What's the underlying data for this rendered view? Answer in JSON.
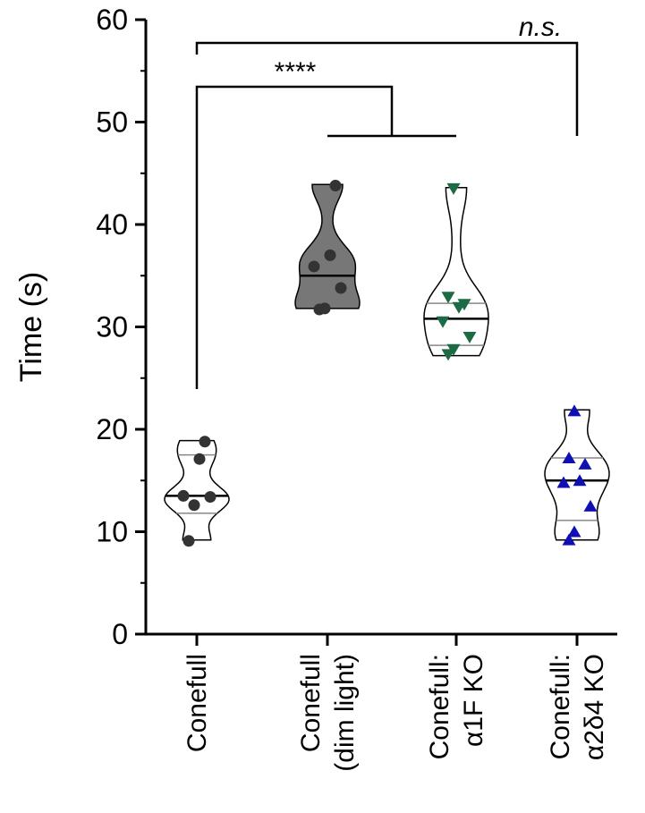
{
  "chart_data": {
    "type": "violin",
    "ylabel": "Time (s)",
    "ylim": [
      0,
      60
    ],
    "yticks": [
      "0",
      "10",
      "20",
      "30",
      "40",
      "50",
      "60"
    ],
    "ytick_values": [
      0,
      10,
      20,
      30,
      40,
      50,
      60
    ],
    "categories": [
      {
        "lines": [
          "Conefull"
        ]
      },
      {
        "lines": [
          "Conefull",
          "(dim light)"
        ]
      },
      {
        "lines": [
          "Conefull:",
          "α1F KO"
        ]
      },
      {
        "lines": [
          "Conefull:",
          "α2δ4 KO"
        ]
      }
    ],
    "series": [
      {
        "fill": "#ffffff",
        "marker": "circle",
        "marker_color": "#333333",
        "median": 13.5,
        "quartiles": [
          11.8,
          17.5
        ],
        "range": [
          9.2,
          18.9
        ],
        "values": [
          9.1,
          12.6,
          13.4,
          13.5,
          17.1,
          18.8
        ]
      },
      {
        "fill": "#777777",
        "marker": "circle",
        "marker_color": "#333333",
        "median": 35.0,
        "quartiles": [],
        "range": [
          31.8,
          43.9
        ],
        "values": [
          31.7,
          31.8,
          33.8,
          35.9,
          37.0,
          43.8
        ]
      },
      {
        "fill": "#ffffff",
        "marker": "triangle-down",
        "marker_color": "#1d6b44",
        "median": 30.8,
        "quartiles": [
          28.2,
          32.3
        ],
        "range": [
          27.2,
          43.6
        ],
        "values": [
          27.3,
          27.8,
          29.0,
          30.5,
          31.9,
          32.2,
          32.9,
          43.5
        ]
      },
      {
        "fill": "#ffffff",
        "marker": "triangle-up",
        "marker_color": "#0f10b4",
        "median": 15.0,
        "quartiles": [
          11.1,
          17.2
        ],
        "range": [
          9.2,
          21.9
        ],
        "values": [
          9.2,
          10.0,
          12.5,
          14.8,
          15.0,
          16.6,
          17.2,
          21.8
        ]
      }
    ],
    "annotations": [
      {
        "text": "****",
        "italic": false
      },
      {
        "text": "n.s.",
        "italic": true
      }
    ]
  }
}
